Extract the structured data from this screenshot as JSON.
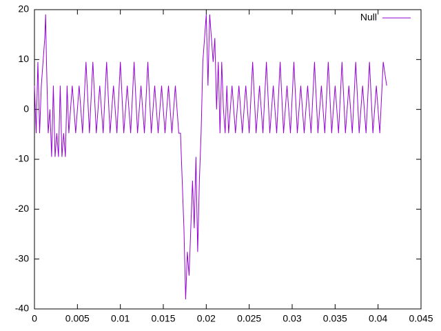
{
  "chart_data": {
    "type": "line",
    "x": [
      0,
      0.0002,
      0.0004,
      0.0006,
      0.0008,
      0.001,
      0.0012,
      0.0013,
      0.0014,
      0.0016,
      0.0018,
      0.002,
      0.0022,
      0.0024,
      0.0026,
      0.0028,
      0.003,
      0.0032,
      0.0034,
      0.0036,
      0.0038,
      0.004,
      0.0044,
      0.0048,
      0.0052,
      0.0056,
      0.006,
      0.0064,
      0.0068,
      0.0072,
      0.0076,
      0.008,
      0.0084,
      0.0088,
      0.0092,
      0.0096,
      0.01,
      0.0104,
      0.0108,
      0.0112,
      0.0116,
      0.012,
      0.0124,
      0.0128,
      0.0132,
      0.0136,
      0.014,
      0.0144,
      0.0148,
      0.0152,
      0.0156,
      0.016,
      0.0164,
      0.0168,
      0.017,
      0.0172,
      0.0174,
      0.0176,
      0.0178,
      0.018,
      0.0182,
      0.0184,
      0.0186,
      0.0188,
      0.019,
      0.0192,
      0.0194,
      0.0196,
      0.0198,
      0.02,
      0.0202,
      0.0204,
      0.0206,
      0.0208,
      0.021,
      0.0212,
      0.0214,
      0.0216,
      0.0218,
      0.022,
      0.0222,
      0.0224,
      0.0226,
      0.023,
      0.0234,
      0.0238,
      0.0242,
      0.0246,
      0.025,
      0.0254,
      0.0258,
      0.0262,
      0.0266,
      0.027,
      0.0274,
      0.0278,
      0.0282,
      0.0286,
      0.029,
      0.0294,
      0.0298,
      0.0302,
      0.0306,
      0.031,
      0.0314,
      0.0318,
      0.0322,
      0.0326,
      0.033,
      0.0334,
      0.0338,
      0.0342,
      0.0346,
      0.035,
      0.0354,
      0.0358,
      0.0362,
      0.0366,
      0.037,
      0.0374,
      0.0378,
      0.0382,
      0.0386,
      0.039,
      0.0394,
      0.0398,
      0.0402,
      0.0406,
      0.041
    ],
    "series": [
      {
        "name": "Null",
        "color": "#9400d3",
        "values": [
          4.76,
          -4.76,
          9.52,
          -4.76,
          4.76,
          9.52,
          14.29,
          19.05,
          9.52,
          -4.76,
          0,
          -9.52,
          4.76,
          -9.52,
          -4.76,
          -9.52,
          4.76,
          -9.52,
          -4.76,
          -9.52,
          4.76,
          -4.76,
          4.76,
          -4.76,
          4.76,
          -4.76,
          9.52,
          -4.76,
          9.52,
          -4.76,
          4.76,
          -4.76,
          9.52,
          -4.76,
          4.76,
          -4.76,
          9.52,
          -4.76,
          4.76,
          -4.76,
          9.52,
          -4.76,
          4.76,
          -4.76,
          9.52,
          -4.76,
          4.76,
          -4.76,
          4.76,
          -4.76,
          4.76,
          -4.76,
          4.76,
          -4.76,
          -4.76,
          -14.29,
          -23.81,
          -38.1,
          -28.57,
          -33.33,
          -23.81,
          -14.29,
          -23.81,
          -9.52,
          -28.57,
          -14.29,
          -4.76,
          9.52,
          14.29,
          19.05,
          4.76,
          19.05,
          14.29,
          9.52,
          14.29,
          0,
          9.52,
          -4.76,
          9.52,
          0,
          -4.76,
          4.76,
          -4.76,
          4.76,
          -4.76,
          4.76,
          -4.76,
          4.76,
          -4.76,
          9.52,
          -4.76,
          4.76,
          -4.76,
          9.52,
          -4.76,
          4.76,
          -4.76,
          9.52,
          -4.76,
          4.76,
          -4.76,
          9.52,
          -4.76,
          4.76,
          -4.76,
          4.76,
          -4.76,
          9.52,
          -4.76,
          4.76,
          -4.76,
          9.52,
          -4.76,
          4.76,
          -4.76,
          9.52,
          -4.76,
          4.76,
          -4.76,
          9.52,
          -4.76,
          4.76,
          -4.76,
          9.52,
          -4.76,
          4.76,
          -4.76,
          9.52,
          4.76
        ]
      }
    ],
    "xlim": [
      0,
      0.045
    ],
    "xticks": [
      0,
      0.005,
      0.01,
      0.015,
      0.02,
      0.025,
      0.03,
      0.035,
      0.04,
      0.045
    ],
    "ylim": [
      -40,
      20
    ],
    "yticks": [
      -40,
      -30,
      -20,
      -10,
      0,
      10,
      20
    ],
    "legend": "top-right"
  }
}
